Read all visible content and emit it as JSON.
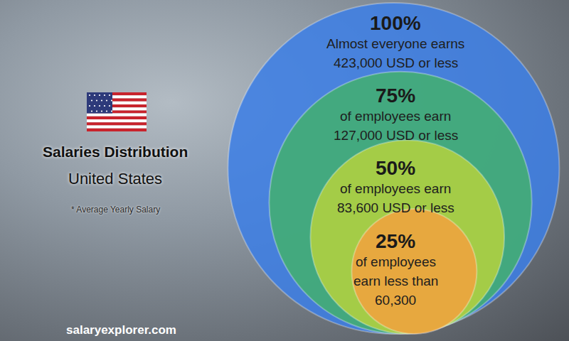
{
  "chart_data": {
    "type": "nested_circles",
    "title": "Salaries Distribution",
    "subtitle": "United States",
    "note": "* Average Yearly Salary",
    "source": "salaryexplorer.com",
    "circles": [
      {
        "percent": 100,
        "percent_label": "100%",
        "lines": [
          "Almost everyone earns",
          "423,000 USD or less"
        ],
        "color": "#3d7fe6"
      },
      {
        "percent": 75,
        "percent_label": "75%",
        "lines": [
          "of employees earn",
          "127,000 USD or less"
        ],
        "color": "#43b070"
      },
      {
        "percent": 50,
        "percent_label": "50%",
        "lines": [
          "of employees earn",
          "83,600 USD or less"
        ],
        "color": "#b5d23e"
      },
      {
        "percent": 25,
        "percent_label": "25%",
        "lines": [
          "of employees",
          "earn less than",
          "60,300"
        ],
        "color": "#f2a33e"
      }
    ]
  }
}
